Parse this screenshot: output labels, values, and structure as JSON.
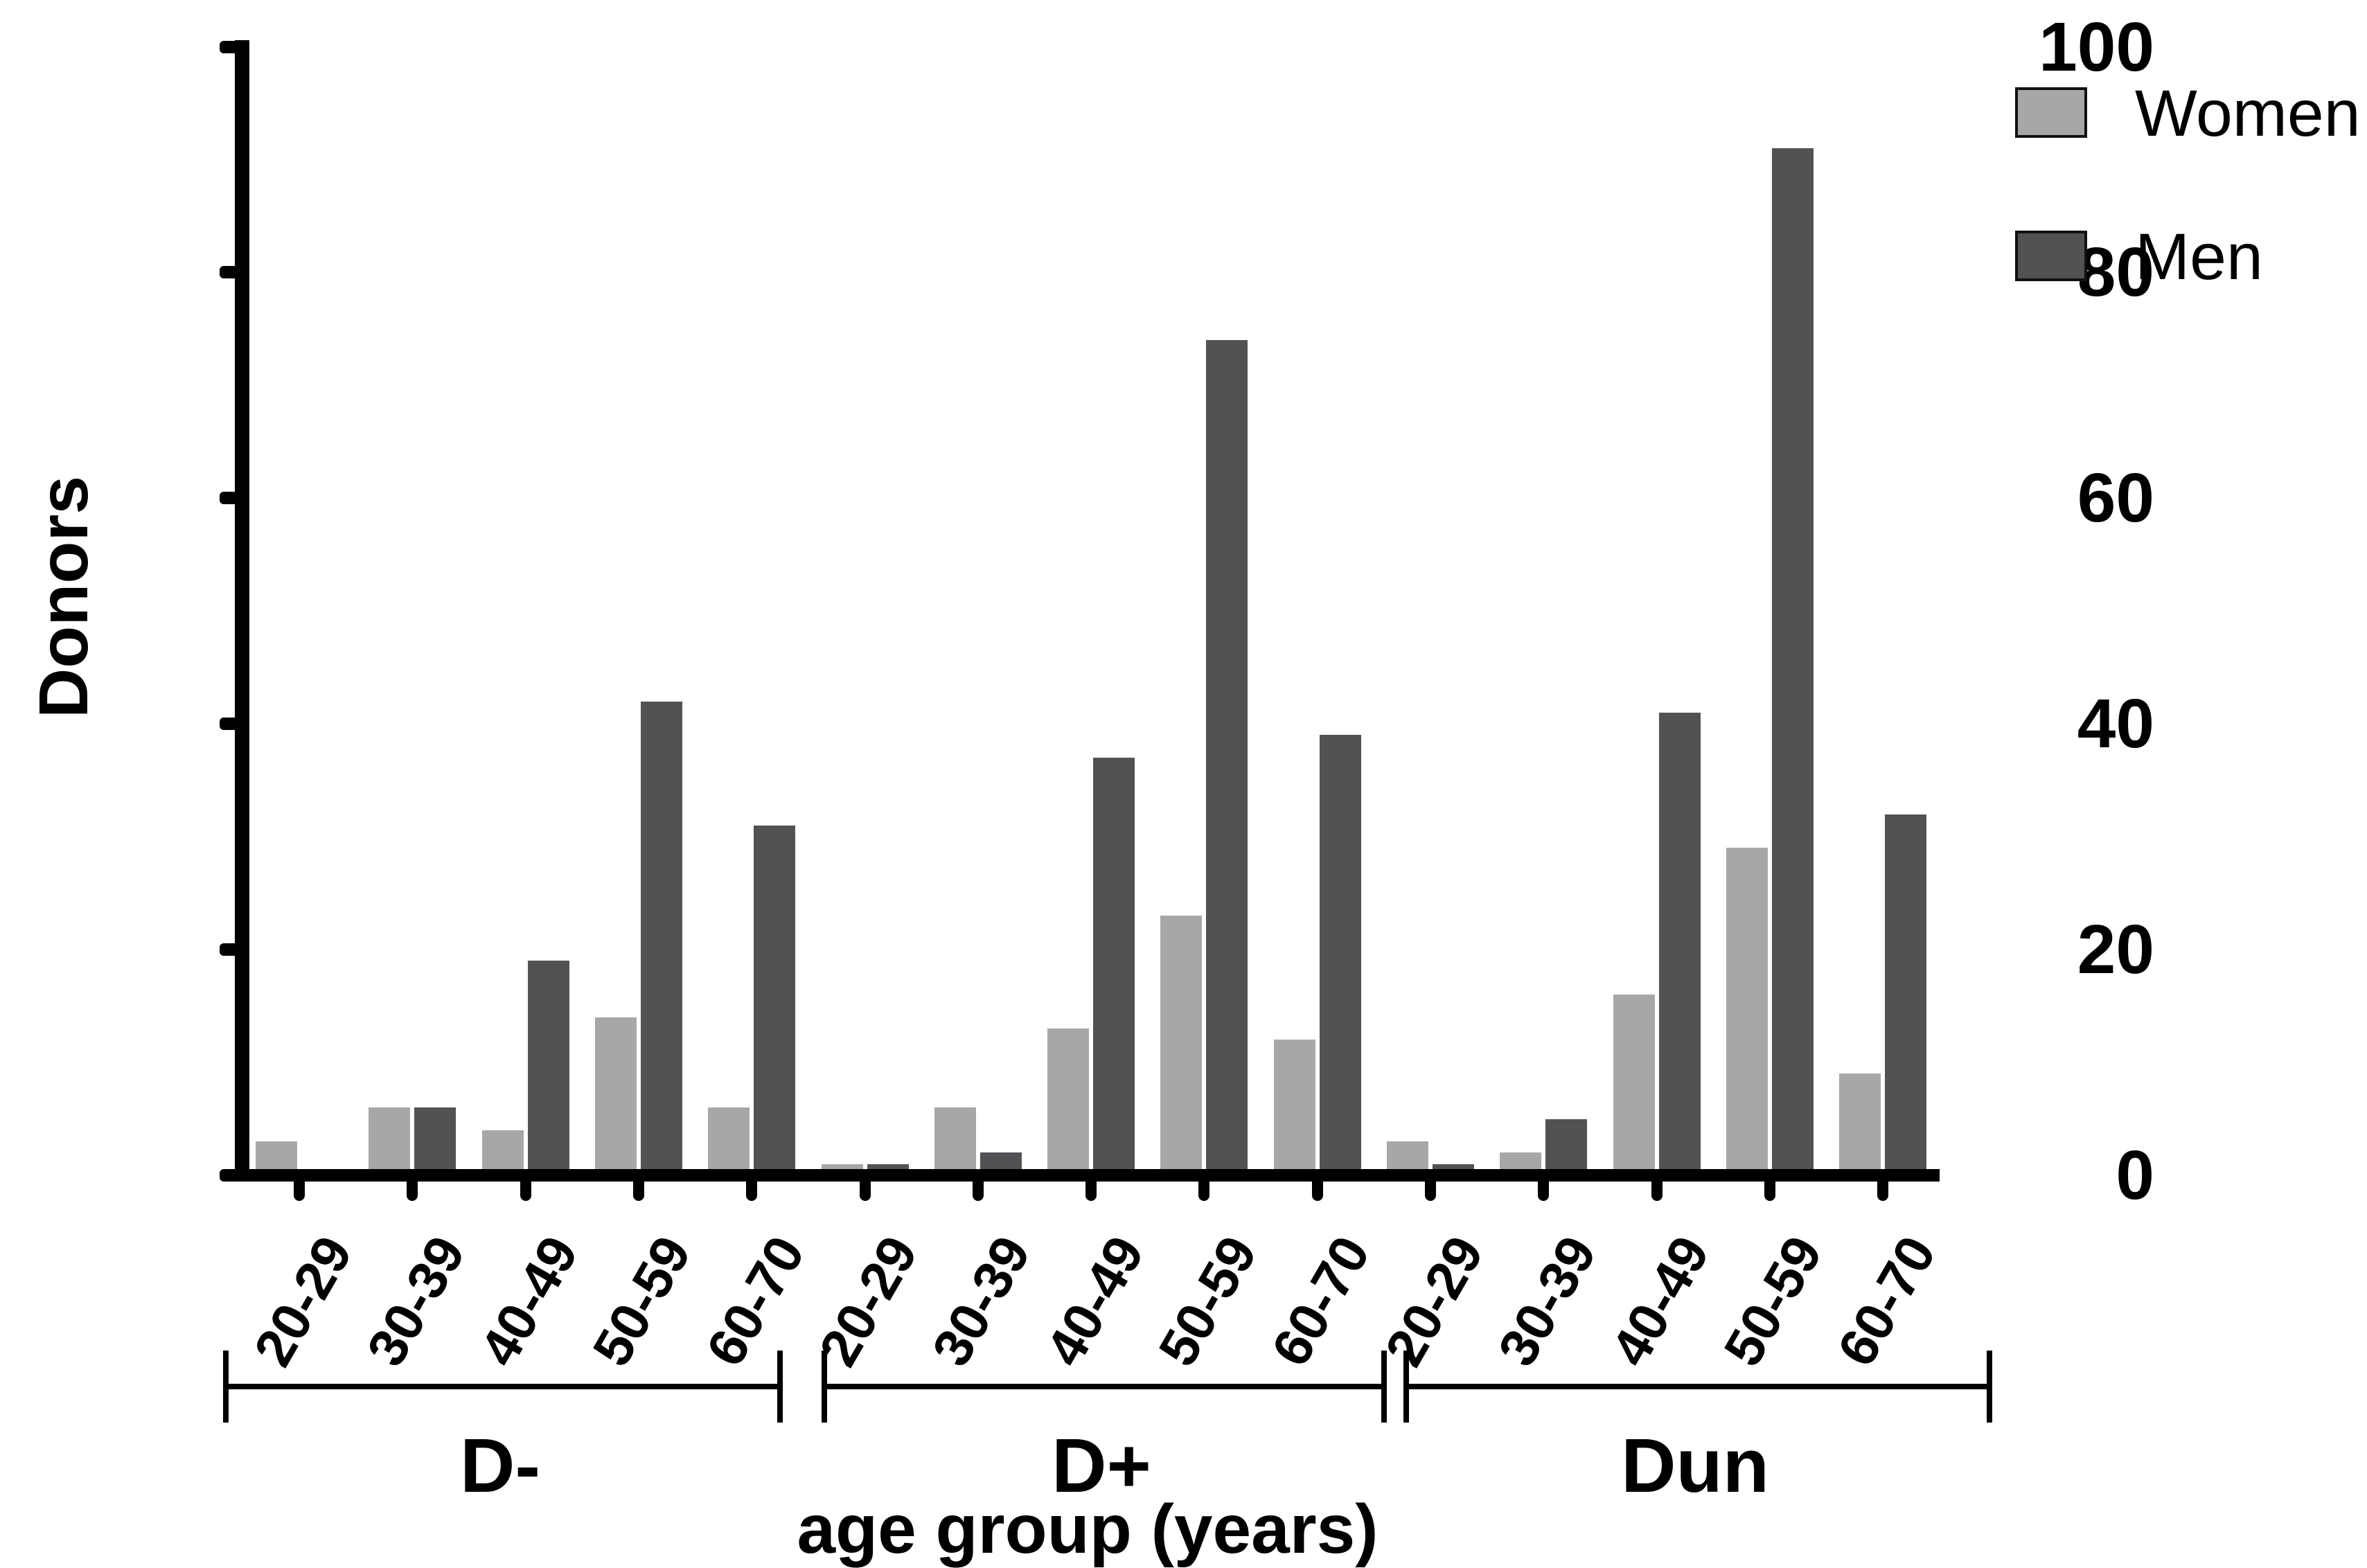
{
  "chart_data": {
    "type": "bar",
    "title": "",
    "ylabel": "Donors",
    "xlabel": "age group (years)",
    "ylim": [
      0,
      100
    ],
    "yticks": [
      0,
      20,
      40,
      60,
      80,
      100
    ],
    "ytick_labels": [
      "0",
      "20",
      "40",
      "60",
      "80",
      "100"
    ],
    "age_categories": [
      "20-29",
      "30-39",
      "40-49",
      "50-59",
      "60-70"
    ],
    "grid": false,
    "legend_position": "top-right",
    "groups": [
      {
        "label": "D-",
        "women": [
          3,
          6,
          4,
          14,
          6
        ],
        "men": [
          0,
          6,
          19,
          42,
          31
        ]
      },
      {
        "label": "D+",
        "women": [
          1,
          6,
          13,
          23,
          12
        ],
        "men": [
          1,
          2,
          37,
          74,
          39
        ]
      },
      {
        "label": "Dun",
        "women": [
          3,
          2,
          16,
          29,
          9
        ],
        "men": [
          1,
          5,
          41,
          91,
          32
        ]
      }
    ],
    "series_names": [
      "Women",
      "Men"
    ],
    "legend": [
      {
        "label": "Women",
        "color": "#A7A7AA"
      },
      {
        "label": "Men",
        "color": "#525255"
      }
    ],
    "colors": {
      "women": "#A7A7AA",
      "men": "#525255",
      "axis": "#000000"
    }
  }
}
